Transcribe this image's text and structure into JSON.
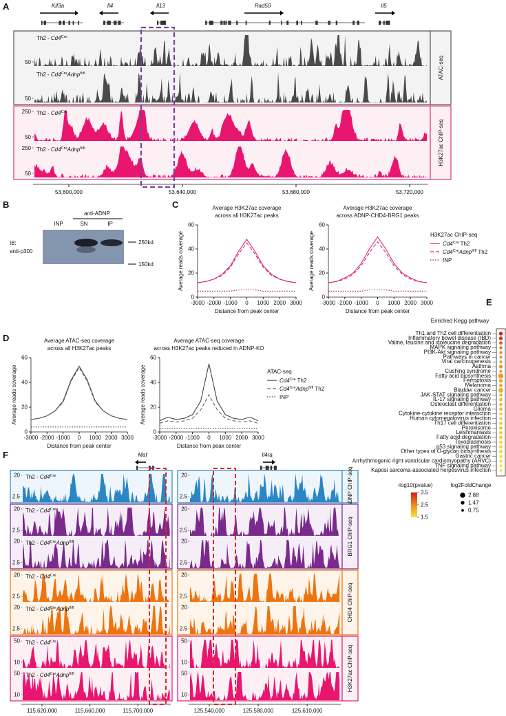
{
  "panels": {
    "A": {
      "label": "A",
      "genes": [
        "Kif3a",
        "Il4",
        "Il13",
        "Rad50",
        "Il5"
      ],
      "assays": [
        {
          "name": "ATAC-seq",
          "color": "#4a4a4a",
          "background": "#f3f3f3",
          "border": "#555555",
          "kind": "atac",
          "tracks": [
            {
              "sample": [
                "Th2 - ",
                "Cd4",
                "Cre"
              ],
              "ticks": [
                50
              ]
            },
            {
              "sample": [
                "Th2 - ",
                "Cd4",
                "Cre",
                "Adnp",
                "fl/fl"
              ],
              "ticks": [
                50
              ]
            }
          ]
        },
        {
          "name": "H3K27ac ChIP-seq",
          "color": "#e8166f",
          "background": "#fdf0f5",
          "border": "#e0307f",
          "kind": "chip",
          "tracks": [
            {
              "sample": [
                "Th2 - ",
                "Cd4",
                "Cre"
              ],
              "ticks": [
                250,
                50
              ]
            },
            {
              "sample": [
                "Th2 - ",
                "Cd4",
                "Cre",
                "Adnp",
                "fl/fl"
              ],
              "ticks": [
                250,
                50
              ]
            }
          ]
        }
      ],
      "xticks": [
        "53,600,000",
        "53,640,000",
        "53,680,000",
        "53,720,000"
      ]
    },
    "B": {
      "label": "B",
      "antibody": "anti-ADNP",
      "lanes": [
        "INP",
        "SN",
        "IP"
      ],
      "ib": [
        "IB:",
        "anti-p300"
      ],
      "markers": [
        "250kd",
        "150kd"
      ]
    },
    "C": {
      "label": "C",
      "ylabel": "Average reads coverage",
      "xlabel": "Distance from peak center",
      "xlim": [
        -3000,
        3000
      ],
      "xticks": [
        -3000,
        -2000,
        -1000,
        0,
        1000,
        2000,
        3000
      ],
      "ylim": [
        0,
        60
      ],
      "yticks": [
        0,
        20,
        40,
        60
      ],
      "x": [
        -3000,
        -2500,
        -2000,
        -1500,
        -1000,
        -500,
        0,
        500,
        1000,
        1500,
        2000,
        2500,
        3000
      ],
      "legend": {
        "title": "H3K27ac ChIP-seq",
        "items": [
          {
            "name": [
              "Cd4",
              "Cre",
              " Th2"
            ],
            "color": "#d6247a",
            "dash": "solid"
          },
          {
            "name": [
              "Cd4",
              "Cre",
              "Adnp",
              "fl/fl",
              " Th2"
            ],
            "color": "#d6247a",
            "dash": "dashed"
          },
          {
            "name": [
              "INP"
            ],
            "color": "#a01a5a",
            "dash": "dotted"
          }
        ]
      },
      "charts": [
        {
          "title": [
            "Average H3K27ac coverage",
            "across all H3K27ac peaks"
          ],
          "series": [
            [
              12,
              13,
              15,
              19,
              26,
              38,
              48,
              38,
              26,
              19,
              15,
              13,
              12
            ],
            [
              12,
              13,
              15,
              18,
              25,
              36,
              45,
              36,
              25,
              18,
              15,
              13,
              12
            ],
            [
              5,
              5,
              5,
              5,
              5,
              6,
              6,
              6,
              5,
              5,
              5,
              5,
              5
            ]
          ]
        },
        {
          "title": [
            "Average H3K27ac coverage",
            "across ADNP-CHD4-BRG1 peaks"
          ],
          "series": [
            [
              12,
              13,
              16,
              20,
              28,
              40,
              50,
              40,
              28,
              20,
              16,
              13,
              12
            ],
            [
              12,
              13,
              15,
              19,
              26,
              37,
              46,
              37,
              26,
              19,
              15,
              13,
              12
            ],
            [
              5,
              5,
              5,
              5,
              5,
              6,
              6,
              6,
              5,
              5,
              5,
              5,
              5
            ]
          ]
        }
      ]
    },
    "D": {
      "label": "D",
      "ylabel": "Average reads coverage",
      "xlabel": "Distance from peak center",
      "xlim": [
        -3000,
        3000
      ],
      "xticks": [
        -3000,
        -2000,
        -1000,
        0,
        1000,
        2000,
        3000
      ],
      "ylim": [
        0,
        60
      ],
      "yticks": [
        0,
        20,
        40,
        60
      ],
      "x": [
        -3000,
        -2500,
        -2000,
        -1500,
        -1000,
        -500,
        0,
        500,
        1000,
        1500,
        2000,
        2500,
        3000
      ],
      "legend": {
        "title": "ATAC-seq",
        "items": [
          {
            "name": [
              "Cd4",
              "Cre",
              " Th2"
            ],
            "color": "#444444",
            "dash": "solid"
          },
          {
            "name": [
              "Cd4",
              "Cre",
              "Adnp",
              "fl/fl",
              " Th2"
            ],
            "color": "#666666",
            "dash": "dashed"
          },
          {
            "name": [
              "INP"
            ],
            "color": "#444444",
            "dash": "dotted"
          }
        ]
      },
      "charts": [
        {
          "title": [
            "Average ATAC-seq coverage",
            "across all H3K27ac peaks"
          ],
          "series": [
            [
              10,
              11,
              13,
              17,
              25,
              42,
              53,
              42,
              25,
              17,
              13,
              11,
              10
            ],
            [
              10,
              11,
              13,
              17,
              24,
              41,
              52,
              41,
              24,
              17,
              13,
              11,
              10
            ],
            [
              4,
              4,
              4,
              4,
              4,
              4,
              4,
              4,
              4,
              4,
              4,
              4,
              4
            ]
          ]
        },
        {
          "title": [
            "Average ATAC-seq coverage",
            "across H3K27ac peaks reduced in ADNP-KO"
          ],
          "series": [
            [
              9,
              12,
              10,
              11,
              14,
              25,
              55,
              25,
              14,
              11,
              10,
              12,
              9
            ],
            [
              7,
              9,
              8,
              9,
              11,
              18,
              30,
              18,
              11,
              9,
              8,
              9,
              7
            ],
            [
              3,
              3,
              3,
              3,
              3,
              3,
              3,
              3,
              3,
              3,
              3,
              3,
              3
            ]
          ]
        }
      ]
    },
    "E": {
      "label": "E",
      "title": "Enriched Kegg pathway",
      "pathways": [
        "Th1 and Th2 cell differentiation",
        "Inflammatory bowel disease (IBD)",
        "Valine, leucine and isoleucine degradation",
        "MAPK signaling pathway",
        "PI3K-Akt signaling pathway",
        "Pathways in cancer",
        "Viral carcinogenesis",
        "Asthma",
        "Cushing syndrome",
        "Fatty acid biosynthesis",
        "Ferroptosis",
        "Melanoma",
        "Bladder cancer",
        "JAK-STAT signaling pathway",
        "IL-17 signaling pathway",
        "Osteoclast differentiation",
        "Glioma",
        "Cytokine-cytokine receptor interaction",
        "Human cytomegalovirus infection",
        "Th17 cell differentiation",
        "Peroxisome",
        "Leishmaniasis",
        "Fatty acid degradation",
        "Toxoplasmosis",
        "p53 signaling pathway",
        "Other types of O-glycan biosynthesis",
        "Gastric cancer",
        "Arrhythmogenic right ventricular cardiomyopathy (ARVC)",
        "TNF signaling pathway",
        "Kaposi sarcoma-associated herpesvirus infection"
      ],
      "log10p": [
        3.5,
        3.3,
        3.0,
        2.7,
        2.6,
        2.5,
        2.4,
        2.4,
        2.3,
        2.3,
        2.2,
        2.2,
        2.1,
        2.1,
        2.0,
        2.0,
        1.9,
        1.9,
        1.9,
        1.8,
        1.8,
        1.8,
        1.7,
        1.7,
        1.7,
        1.6,
        1.6,
        1.6,
        1.5,
        1.5
      ],
      "log2fc": [
        1.5,
        1.5,
        1.2,
        1.0,
        0.9,
        0.8,
        0.8,
        1.3,
        0.9,
        2.88,
        1.5,
        1.3,
        2.5,
        1.0,
        1.2,
        1.1,
        1.3,
        0.8,
        0.8,
        1.2,
        1.3,
        1.2,
        1.5,
        1.1,
        1.2,
        1.5,
        1.1,
        1.0,
        1.0,
        0.8
      ],
      "color_title": "-log10(pvalue)",
      "color_ticks": [
        3.5,
        2.5,
        1.5
      ],
      "size_title": "log2FoldChange",
      "size_ticks": [
        2.88,
        1.47,
        0.75
      ]
    },
    "F": {
      "label": "F",
      "genes": [
        "Maf",
        "Il4ra"
      ],
      "groups": [
        {
          "name": "ADNP ChIP-seq",
          "color": "#2a86c4",
          "background": "#eef5fb",
          "ticks": [
            20,
            2.5
          ],
          "tracks": [
            {
              "sample": [
                "Th2 - ",
                "Cd4",
                "Cre"
              ]
            }
          ]
        },
        {
          "name": "BRG1 ChIP-seq",
          "color": "#7a2a8c",
          "background": "#f5eef8",
          "ticks": [
            20,
            2.5
          ],
          "tracks": [
            {
              "sample": [
                "Th2 - ",
                "Cd4",
                "Cre"
              ]
            },
            {
              "sample": [
                "Th2 - ",
                "Cd4",
                "Cre",
                "Adnp",
                "fl/fl"
              ]
            }
          ]
        },
        {
          "name": "CHD4 ChIP-seq",
          "color": "#ee7410",
          "background": "#fef4ea",
          "ticks": [
            20,
            2.5
          ],
          "tracks": [
            {
              "sample": [
                "Th2 - ",
                "Cd4",
                "Cre"
              ]
            },
            {
              "sample": [
                "Th2 - ",
                "Cd4",
                "Cre",
                "Adnp",
                "fl/fl"
              ]
            }
          ]
        },
        {
          "name": "H3K27ac ChIP-seq",
          "color": "#e8166f",
          "background": "#fdf0f5",
          "ticks": [
            50,
            10
          ],
          "tracks": [
            {
              "sample": [
                "Th2 - ",
                "Cd4",
                "Cre"
              ]
            },
            {
              "sample": [
                "Th2 - ",
                "Cd4",
                "Cre",
                "Adnp",
                "fl/fl"
              ]
            }
          ]
        }
      ],
      "xticks": [
        [
          "115,620,000",
          "115,660,000",
          "115,700,000"
        ],
        [
          "125,540,000",
          "125,580,000",
          "125,610,000"
        ]
      ]
    }
  }
}
